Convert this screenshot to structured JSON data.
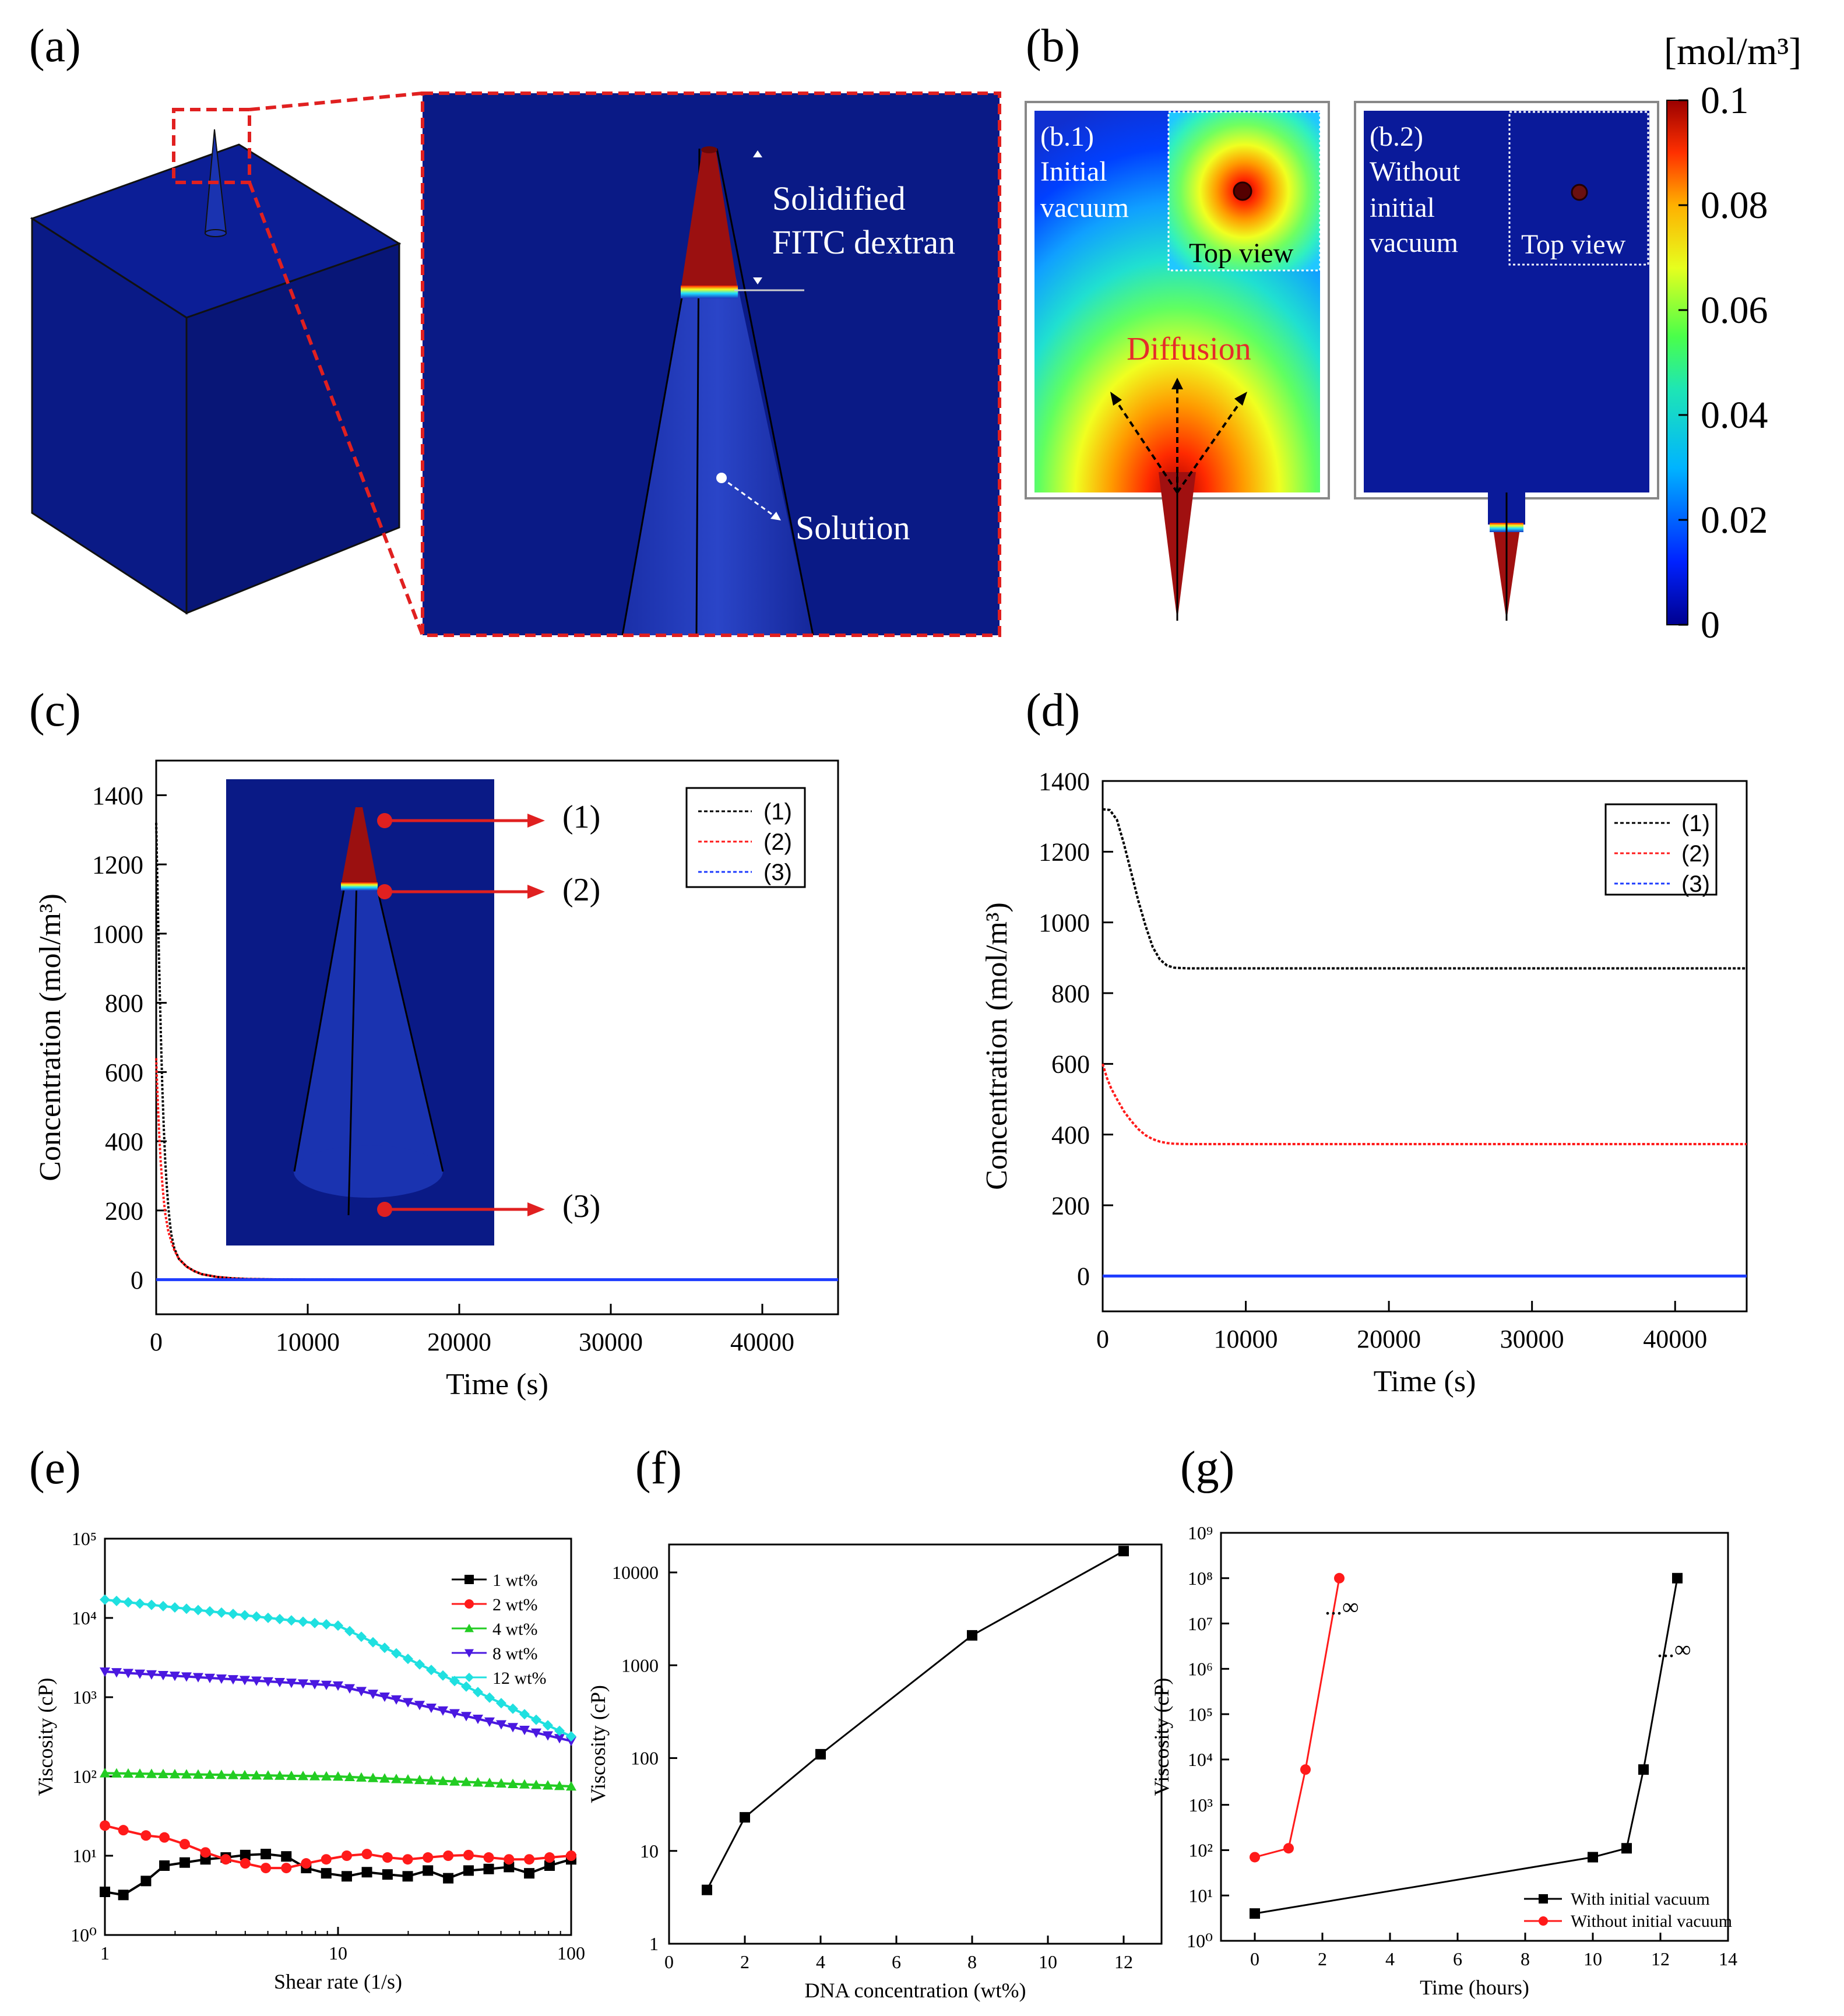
{
  "colors": {
    "navy": "#0a1a86",
    "dark_red": "#8b0f0f",
    "callout_red": "#e02020",
    "diffusion_red": "#e52b2b",
    "black": "#000000",
    "series_red": "#ff1a1a",
    "series_blue": "#1e3cff",
    "series_green": "#22cc22",
    "series_violet": "#4a18e0",
    "series_cyan": "#1fe0e0"
  },
  "panels": {
    "a": {
      "label": "(a)",
      "inset_label_top": "Solidified",
      "inset_label_top2": "FITC dextran",
      "inset_label_bottom": "Solution"
    },
    "b": {
      "label": "(b)",
      "colorbar_unit": "[mol/m³]",
      "colorbar_ticks": [
        "0.1",
        "0.08",
        "0.06",
        "0.04",
        "0.02",
        "0"
      ],
      "colorbar_range": [
        0,
        0.1
      ],
      "b1_label": [
        "(b.1)",
        "Initial",
        "vacuum"
      ],
      "b1_top_view": "Top view",
      "b1_diffusion": "Diffusion",
      "b2_label": [
        "(b.2)",
        "Without",
        "initial",
        "vacuum"
      ],
      "b2_top_view": "Top view"
    },
    "c": {
      "label": "(c)",
      "callouts": [
        "(1)",
        "(2)",
        "(3)"
      ]
    },
    "d": {
      "label": "(d)"
    },
    "e": {
      "label": "(e)"
    },
    "f": {
      "label": "(f)"
    },
    "g": {
      "label": "(g)",
      "infinity_marks": [
        "...∞",
        "...∞"
      ]
    }
  },
  "chart_data": [
    {
      "id": "c",
      "type": "line",
      "xlabel": "Time (s)",
      "ylabel": "Concentration (mol/m³)",
      "xlim": [
        0,
        45000
      ],
      "ylim": [
        -100,
        1500
      ],
      "xticks": [
        0,
        10000,
        20000,
        30000,
        40000
      ],
      "yticks": [
        0,
        200,
        400,
        600,
        800,
        1000,
        1200,
        1400
      ],
      "legend_position": "top-right",
      "series": [
        {
          "name": "(1)",
          "x": [
            0,
            100,
            200,
            300,
            400,
            500,
            600,
            700,
            800,
            900,
            1000,
            1200,
            1500,
            2000,
            2500,
            3000,
            4000,
            5000,
            6000,
            8000,
            10000,
            15000,
            20000,
            30000,
            45000
          ],
          "values": [
            1320,
            1100,
            900,
            720,
            560,
            440,
            340,
            270,
            210,
            165,
            130,
            90,
            60,
            38,
            25,
            16,
            8,
            4,
            2,
            1,
            0.5,
            0,
            0,
            0,
            0
          ]
        },
        {
          "name": "(2)",
          "x": [
            0,
            100,
            200,
            300,
            400,
            500,
            600,
            800,
            1000,
            1200,
            1500,
            2000,
            2500,
            3000,
            4000,
            5000,
            6000,
            8000,
            10000,
            15000,
            20000,
            30000,
            45000
          ],
          "values": [
            640,
            520,
            420,
            340,
            280,
            230,
            190,
            140,
            110,
            85,
            60,
            38,
            25,
            16,
            8,
            4,
            2,
            1,
            0.5,
            0,
            0,
            0,
            0
          ]
        },
        {
          "name": "(3)",
          "x": [
            0,
            45000
          ],
          "values": [
            0,
            0
          ]
        }
      ]
    },
    {
      "id": "d",
      "type": "line",
      "xlabel": "Time (s)",
      "ylabel": "Concentration (mol/m³)",
      "xlim": [
        0,
        45000
      ],
      "ylim": [
        -100,
        1400
      ],
      "xticks": [
        0,
        10000,
        20000,
        30000,
        40000
      ],
      "yticks": [
        0,
        200,
        400,
        600,
        800,
        1000,
        1200,
        1400
      ],
      "legend_position": "top-right",
      "series": [
        {
          "name": "(1)",
          "x": [
            0,
            500,
            1000,
            1500,
            2000,
            2500,
            3000,
            3500,
            4000,
            4500,
            5000,
            6000,
            45000
          ],
          "values": [
            1320,
            1318,
            1290,
            1220,
            1140,
            1060,
            990,
            930,
            895,
            878,
            872,
            870,
            870
          ]
        },
        {
          "name": "(2)",
          "x": [
            0,
            300,
            600,
            1000,
            1500,
            2000,
            2500,
            3000,
            3500,
            4000,
            4500,
            5000,
            6000,
            45000
          ],
          "values": [
            600,
            560,
            530,
            500,
            465,
            438,
            415,
            398,
            387,
            380,
            376,
            374,
            373,
            373
          ]
        },
        {
          "name": "(3)",
          "x": [
            0,
            45000
          ],
          "values": [
            0,
            0
          ]
        }
      ]
    },
    {
      "id": "e",
      "type": "line",
      "xlabel": "Shear rate (1/s)",
      "ylabel": "Viscosity (cP)",
      "xscale": "log",
      "yscale": "log",
      "xlim": [
        1,
        100
      ],
      "ylim": [
        1,
        100000
      ],
      "xtick_labels": [
        "1",
        "10",
        "100"
      ],
      "ytick_labels": [
        "10⁰",
        "10¹",
        "10²",
        "10³",
        "10⁴",
        "10⁵"
      ],
      "legend_position": "top-right",
      "series": [
        {
          "name": "1 wt%",
          "x": [
            1.0,
            1.2,
            1.5,
            1.8,
            2.2,
            2.7,
            3.3,
            4.0,
            4.9,
            6.0,
            7.3,
            8.9,
            10.9,
            13.3,
            16.3,
            19.9,
            24.3,
            29.7,
            36.3,
            44.3,
            54.1,
            66.1,
            80.8,
            100
          ],
          "values": [
            3.5,
            3.2,
            4.8,
            7.5,
            8.2,
            9,
            9.5,
            10.2,
            10.5,
            9.8,
            7,
            6,
            5.5,
            6.2,
            5.8,
            5.5,
            6.5,
            5.2,
            6.5,
            6.8,
            7.2,
            6,
            7.5,
            9
          ]
        },
        {
          "name": "2 wt%",
          "x": [
            1.0,
            1.2,
            1.5,
            1.8,
            2.2,
            2.7,
            3.3,
            4.0,
            4.9,
            6.0,
            7.3,
            8.9,
            10.9,
            13.3,
            16.3,
            19.9,
            24.3,
            29.7,
            36.3,
            44.3,
            54.1,
            66.1,
            80.8,
            100
          ],
          "values": [
            24,
            21,
            18,
            17,
            14,
            11,
            9,
            8,
            7,
            7,
            8,
            9,
            10,
            10.5,
            9.5,
            9,
            9.5,
            10,
            10.2,
            9.5,
            9,
            9,
            9.5,
            10
          ]
        },
        {
          "name": "4 wt%",
          "x": [
            1,
            10,
            100
          ],
          "values": [
            110,
            100,
            75
          ]
        },
        {
          "name": "8 wt%",
          "x": [
            1,
            10,
            100
          ],
          "values": [
            2100,
            1400,
            280
          ]
        },
        {
          "name": "12 wt%",
          "x": [
            1,
            10,
            100
          ],
          "values": [
            17000,
            8000,
            320
          ]
        }
      ]
    },
    {
      "id": "f",
      "type": "line",
      "xlabel": "DNA concentration (wt%)",
      "ylabel": "Viscosity (cP)",
      "yscale": "log",
      "xlim": [
        0,
        13
      ],
      "ylim": [
        1,
        20000
      ],
      "xticks": [
        0,
        2,
        4,
        6,
        8,
        10,
        12
      ],
      "ytick_labels": [
        "1",
        "10",
        "100",
        "1000",
        "10000"
      ],
      "series": [
        {
          "x": [
            1,
            2,
            4,
            8,
            12
          ],
          "values": [
            3.8,
            23,
            110,
            2100,
            17000
          ]
        }
      ]
    },
    {
      "id": "g",
      "type": "line",
      "xlabel": "Time (hours)",
      "ylabel": "Viscosity (cP)",
      "yscale": "log",
      "xlim": [
        -1,
        14
      ],
      "ylim": [
        1,
        1000000000
      ],
      "xticks": [
        0,
        2,
        4,
        6,
        8,
        10,
        12,
        14
      ],
      "ytick_labels": [
        "10⁰",
        "10¹",
        "10²",
        "10³",
        "10⁴",
        "10⁵",
        "10⁶",
        "10⁷",
        "10⁸",
        "10⁹"
      ],
      "legend_position": "bottom-right",
      "series": [
        {
          "name": "With initial vacuum",
          "x": [
            0,
            10,
            11,
            11.5,
            12.5
          ],
          "values": [
            4,
            70,
            110,
            6000,
            100000000
          ]
        },
        {
          "name": "Without initial vacuum",
          "x": [
            0,
            1,
            1.5,
            2.5
          ],
          "values": [
            70,
            110,
            6000,
            100000000
          ]
        }
      ]
    }
  ]
}
